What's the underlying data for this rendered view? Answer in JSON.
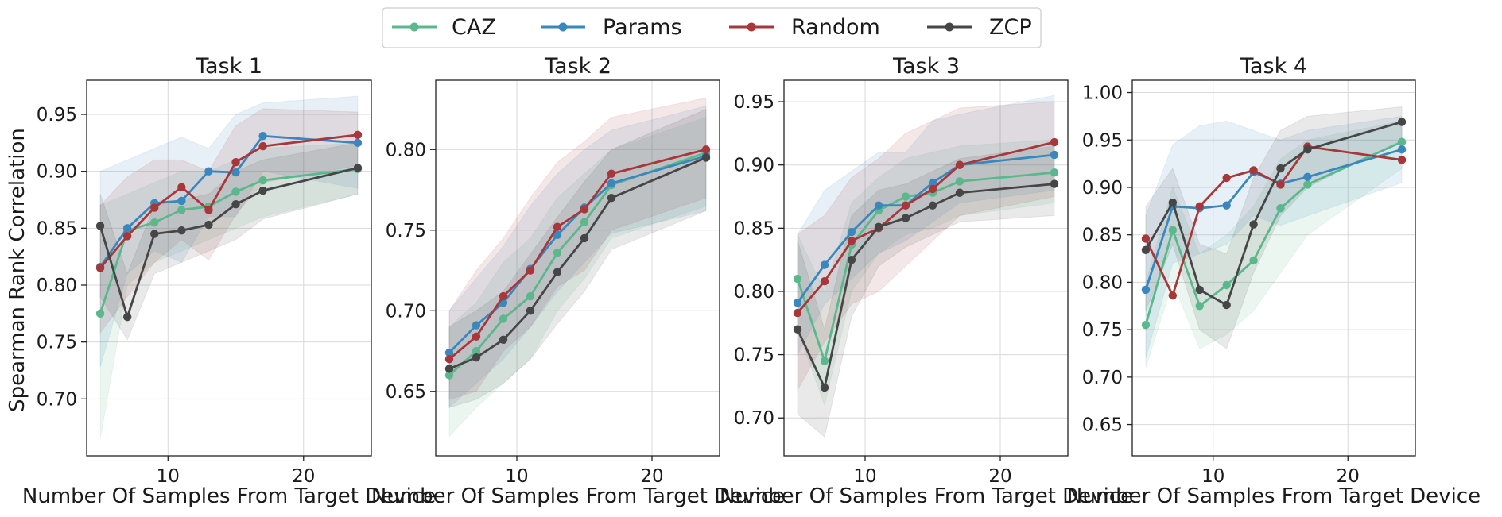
{
  "colors": {
    "CAZ": "#5bb78c",
    "Params": "#3a87be",
    "Random": "#a7373a",
    "ZCP": "#464646"
  },
  "legend": {
    "placement": "top-center",
    "entries": [
      "CAZ",
      "Params",
      "Random",
      "ZCP"
    ]
  },
  "chart_data": [
    {
      "type": "line",
      "title": "Task 1",
      "xlabel": "Number Of Samples From Target Device",
      "ylabel": "Spearman Rank Correlation",
      "grid": true,
      "xlim": [
        4,
        25
      ],
      "ylim": [
        0.65,
        0.98
      ],
      "xticks": [
        10,
        20
      ],
      "yticks": [
        0.7,
        0.75,
        0.8,
        0.85,
        0.9,
        0.95
      ],
      "ytick_labels": [
        "0.70",
        "0.75",
        "0.80",
        "0.85",
        "0.90",
        "0.95"
      ],
      "x": [
        5,
        7,
        9,
        11,
        13,
        15,
        17,
        24
      ],
      "series": [
        {
          "name": "CAZ",
          "values": [
            0.775,
            0.848,
            0.855,
            0.866,
            0.869,
            0.882,
            0.892,
            0.902
          ],
          "lower": [
            0.665,
            0.8,
            0.82,
            0.83,
            0.84,
            0.85,
            0.86,
            0.88
          ],
          "upper": [
            0.87,
            0.88,
            0.89,
            0.9,
            0.9,
            0.91,
            0.92,
            0.925
          ]
        },
        {
          "name": "Params",
          "values": [
            0.816,
            0.85,
            0.872,
            0.874,
            0.9,
            0.899,
            0.931,
            0.925
          ],
          "lower": [
            0.728,
            0.81,
            0.83,
            0.82,
            0.86,
            0.86,
            0.9,
            0.885
          ],
          "upper": [
            0.9,
            0.91,
            0.92,
            0.93,
            0.92,
            0.95,
            0.96,
            0.966
          ]
        },
        {
          "name": "Random",
          "values": [
            0.815,
            0.843,
            0.868,
            0.886,
            0.866,
            0.908,
            0.922,
            0.932
          ],
          "lower": [
            0.758,
            0.79,
            0.82,
            0.84,
            0.822,
            0.862,
            0.89,
            0.905
          ],
          "upper": [
            0.87,
            0.895,
            0.91,
            0.91,
            0.9,
            0.94,
            0.955,
            0.952
          ]
        },
        {
          "name": "ZCP",
          "values": [
            0.852,
            0.772,
            0.845,
            0.848,
            0.853,
            0.871,
            0.883,
            0.903
          ],
          "lower": [
            0.79,
            0.752,
            0.81,
            0.82,
            0.83,
            0.84,
            0.858,
            0.88
          ],
          "upper": [
            0.88,
            0.81,
            0.87,
            0.875,
            0.88,
            0.9,
            0.91,
            0.925
          ]
        }
      ]
    },
    {
      "type": "line",
      "title": "Task 2",
      "xlabel": "Number Of Samples From Target Device",
      "ylabel": "",
      "grid": true,
      "xlim": [
        4,
        25
      ],
      "ylim": [
        0.61,
        0.843
      ],
      "xticks": [
        10,
        20
      ],
      "yticks": [
        0.65,
        0.7,
        0.75,
        0.8
      ],
      "ytick_labels": [
        "0.65",
        "0.70",
        "0.75",
        "0.80"
      ],
      "x": [
        5,
        7,
        9,
        11,
        13,
        15,
        17,
        24
      ],
      "series": [
        {
          "name": "CAZ",
          "values": [
            0.66,
            0.675,
            0.695,
            0.709,
            0.736,
            0.755,
            0.778,
            0.798
          ],
          "lower": [
            0.622,
            0.64,
            0.655,
            0.67,
            0.7,
            0.72,
            0.745,
            0.765
          ],
          "upper": [
            0.69,
            0.705,
            0.73,
            0.745,
            0.77,
            0.785,
            0.8,
            0.82
          ]
        },
        {
          "name": "Params",
          "values": [
            0.674,
            0.691,
            0.705,
            0.726,
            0.747,
            0.764,
            0.779,
            0.796
          ],
          "lower": [
            0.64,
            0.655,
            0.67,
            0.69,
            0.712,
            0.73,
            0.748,
            0.762
          ],
          "upper": [
            0.7,
            0.72,
            0.74,
            0.765,
            0.785,
            0.8,
            0.812,
            0.827
          ]
        },
        {
          "name": "Random",
          "values": [
            0.67,
            0.684,
            0.709,
            0.725,
            0.752,
            0.763,
            0.785,
            0.8
          ],
          "lower": [
            0.645,
            0.65,
            0.675,
            0.69,
            0.715,
            0.725,
            0.75,
            0.77
          ],
          "upper": [
            0.7,
            0.725,
            0.745,
            0.77,
            0.792,
            0.805,
            0.82,
            0.832
          ]
        },
        {
          "name": "ZCP",
          "values": [
            0.664,
            0.671,
            0.682,
            0.7,
            0.724,
            0.745,
            0.77,
            0.795
          ],
          "lower": [
            0.64,
            0.645,
            0.655,
            0.67,
            0.692,
            0.712,
            0.738,
            0.762
          ],
          "upper": [
            0.69,
            0.7,
            0.712,
            0.735,
            0.758,
            0.78,
            0.8,
            0.825
          ]
        }
      ]
    },
    {
      "type": "line",
      "title": "Task 3",
      "xlabel": "Number Of Samples From Target Device",
      "ylabel": "",
      "grid": true,
      "xlim": [
        4,
        25
      ],
      "ylim": [
        0.67,
        0.967
      ],
      "xticks": [
        10,
        20
      ],
      "yticks": [
        0.7,
        0.75,
        0.8,
        0.85,
        0.9,
        0.95
      ],
      "ytick_labels": [
        "0.70",
        "0.75",
        "0.80",
        "0.85",
        "0.90",
        "0.95"
      ],
      "x": [
        5,
        7,
        9,
        11,
        13,
        15,
        17,
        24
      ],
      "series": [
        {
          "name": "CAZ",
          "values": [
            0.81,
            0.745,
            0.837,
            0.864,
            0.875,
            0.878,
            0.887,
            0.894
          ],
          "lower": [
            0.77,
            0.71,
            0.8,
            0.83,
            0.845,
            0.85,
            0.86,
            0.87
          ],
          "upper": [
            0.845,
            0.8,
            0.87,
            0.89,
            0.905,
            0.91,
            0.915,
            0.92
          ]
        },
        {
          "name": "Params",
          "values": [
            0.791,
            0.821,
            0.847,
            0.868,
            0.868,
            0.886,
            0.9,
            0.908
          ],
          "lower": [
            0.75,
            0.79,
            0.81,
            0.83,
            0.84,
            0.855,
            0.87,
            0.88
          ],
          "upper": [
            0.845,
            0.88,
            0.895,
            0.91,
            0.91,
            0.935,
            0.94,
            0.955
          ]
        },
        {
          "name": "Random",
          "values": [
            0.783,
            0.808,
            0.84,
            0.85,
            0.868,
            0.881,
            0.9,
            0.918
          ],
          "lower": [
            0.722,
            0.76,
            0.79,
            0.8,
            0.82,
            0.84,
            0.86,
            0.875
          ],
          "upper": [
            0.845,
            0.86,
            0.89,
            0.905,
            0.925,
            0.935,
            0.945,
            0.95
          ]
        },
        {
          "name": "ZCP",
          "values": [
            0.77,
            0.724,
            0.825,
            0.851,
            0.858,
            0.868,
            0.878,
            0.885
          ],
          "lower": [
            0.703,
            0.685,
            0.78,
            0.82,
            0.835,
            0.845,
            0.855,
            0.86
          ],
          "upper": [
            0.84,
            0.77,
            0.86,
            0.88,
            0.885,
            0.895,
            0.905,
            0.915
          ]
        }
      ]
    },
    {
      "type": "line",
      "title": "Task 4",
      "xlabel": "Number Of Samples From Target Device",
      "ylabel": "",
      "grid": true,
      "xlim": [
        4,
        25
      ],
      "ylim": [
        0.617,
        1.013
      ],
      "xticks": [
        10,
        20
      ],
      "yticks": [
        0.65,
        0.7,
        0.75,
        0.8,
        0.85,
        0.9,
        0.95,
        1.0
      ],
      "ytick_labels": [
        "0.65",
        "0.70",
        "0.75",
        "0.80",
        "0.85",
        "0.90",
        "0.95",
        "1.00"
      ],
      "x": [
        5,
        7,
        9,
        11,
        13,
        15,
        17,
        24
      ],
      "series": [
        {
          "name": "CAZ",
          "values": [
            0.755,
            0.855,
            0.775,
            0.797,
            0.823,
            0.878,
            0.903,
            0.948
          ],
          "lower": [
            0.71,
            0.8,
            0.73,
            0.745,
            0.77,
            0.81,
            0.85,
            0.92
          ],
          "upper": [
            0.8,
            0.9,
            0.83,
            0.85,
            0.88,
            0.93,
            0.95,
            0.97
          ]
        },
        {
          "name": "Params",
          "values": [
            0.792,
            0.88,
            0.878,
            0.881,
            0.916,
            0.904,
            0.911,
            0.94
          ],
          "lower": [
            0.72,
            0.82,
            0.83,
            0.84,
            0.87,
            0.86,
            0.87,
            0.905
          ],
          "upper": [
            0.87,
            0.945,
            0.965,
            0.97,
            0.96,
            0.95,
            0.96,
            0.975
          ]
        },
        {
          "name": "Random",
          "values": [
            0.846,
            0.786,
            0.88,
            0.91,
            0.918,
            0.903,
            0.943,
            0.929
          ],
          "lower": [
            0.72,
            0.634,
            0.83,
            0.86,
            0.875,
            0.86,
            0.905,
            0.884
          ]
        },
        {
          "name": "ZCP",
          "values": [
            0.834,
            0.884,
            0.792,
            0.776,
            0.861,
            0.92,
            0.94,
            0.969
          ],
          "lower": [
            0.77,
            0.84,
            0.75,
            0.73,
            0.81,
            0.87,
            0.9,
            0.95
          ],
          "upper": [
            0.88,
            0.92,
            0.84,
            0.83,
            0.91,
            0.96,
            0.975,
            0.985
          ]
        }
      ]
    }
  ]
}
